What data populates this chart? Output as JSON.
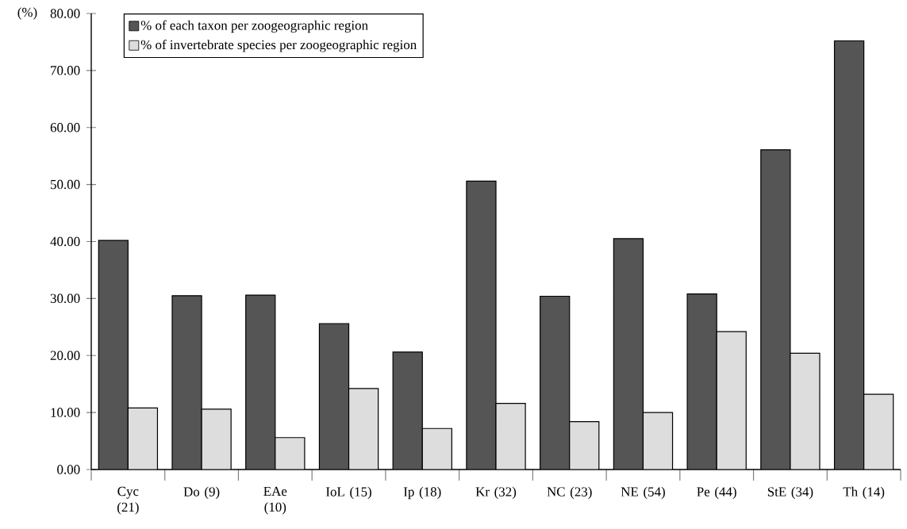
{
  "chart_data": {
    "type": "bar",
    "ylabel": "(%)",
    "categories": [
      "Cyc (21)",
      "Do (9)",
      "EAe (10)",
      "IoL (15)",
      "Ip (18)",
      "Kr (32)",
      "NC (23)",
      "NE (54)",
      "Pe (44)",
      "StE (34)",
      "Th (14)"
    ],
    "series": [
      {
        "name": "% of each taxon per zoogeographic region",
        "color": "#555555",
        "values": [
          40.2,
          30.5,
          30.6,
          25.6,
          20.6,
          50.6,
          30.4,
          40.5,
          30.8,
          56.1,
          75.2
        ]
      },
      {
        "name": "% of invertebrate species per zoogeographic region",
        "color": "#dddddd",
        "values": [
          10.8,
          10.6,
          5.6,
          14.2,
          7.2,
          11.6,
          8.4,
          10.0,
          24.2,
          20.4,
          13.2
        ]
      }
    ],
    "ylim": [
      0,
      80
    ],
    "yticks": [
      {
        "value": 0,
        "label": "0.00"
      },
      {
        "value": 10,
        "label": "10.00"
      },
      {
        "value": 20,
        "label": "20.00"
      },
      {
        "value": 30,
        "label": "30.00"
      },
      {
        "value": 40,
        "label": "40.00"
      },
      {
        "value": 50,
        "label": "50.00"
      },
      {
        "value": 60,
        "label": "60.00"
      },
      {
        "value": 70,
        "label": "70.00"
      },
      {
        "value": 80,
        "label": "80.00"
      }
    ],
    "legend": "top left",
    "grid": false
  }
}
